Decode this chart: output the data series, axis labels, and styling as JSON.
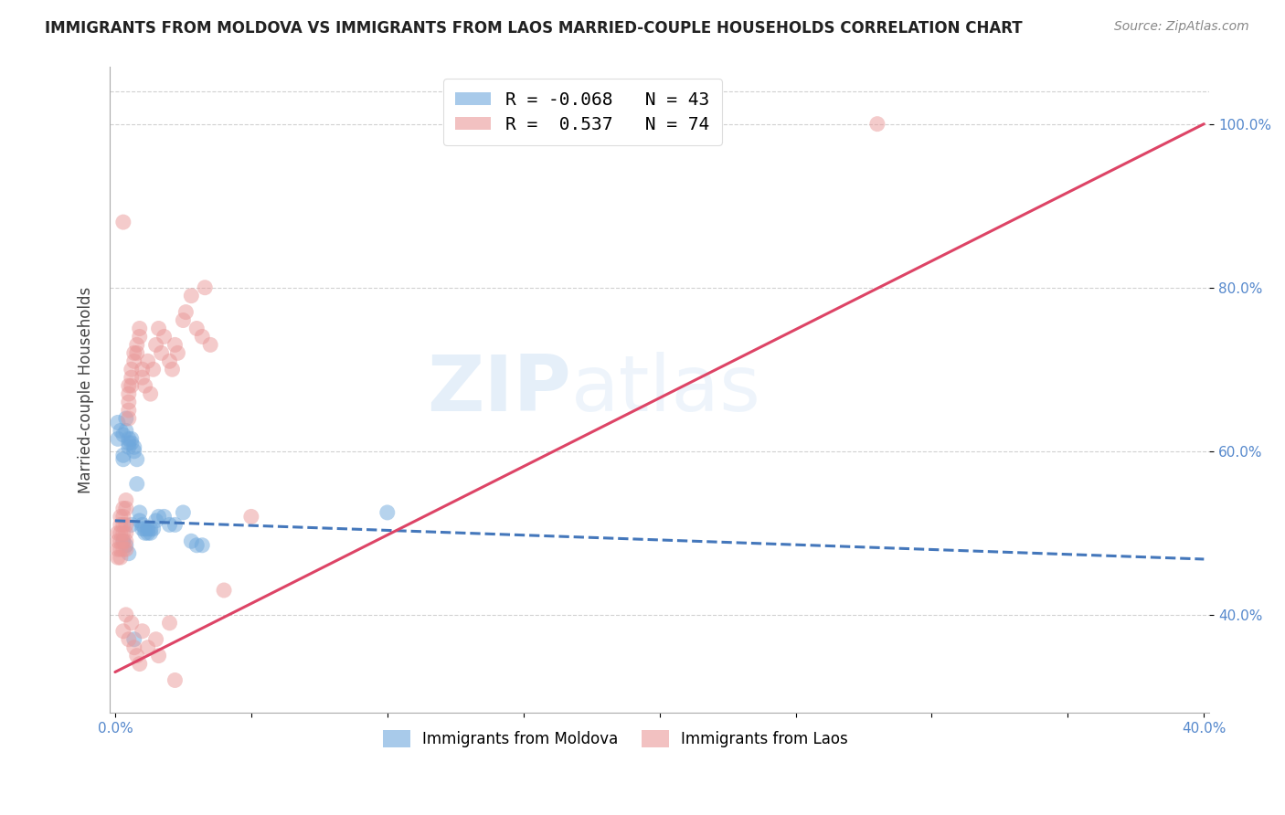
{
  "title": "IMMIGRANTS FROM MOLDOVA VS IMMIGRANTS FROM LAOS MARRIED-COUPLE HOUSEHOLDS CORRELATION CHART",
  "source": "Source: ZipAtlas.com",
  "ylabel_left": "Married-couple Households",
  "x_ticks": [
    0.0,
    0.05,
    0.1,
    0.15,
    0.2,
    0.25,
    0.3,
    0.35,
    0.4
  ],
  "x_tick_labels": [
    "0.0%",
    "",
    "",
    "",
    "",
    "",
    "",
    "",
    "40.0%"
  ],
  "y_ticks_right": [
    0.4,
    0.6,
    0.8,
    1.0
  ],
  "y_tick_labels_right": [
    "40.0%",
    "60.0%",
    "80.0%",
    "100.0%"
  ],
  "xlim": [
    -0.002,
    0.402
  ],
  "ylim": [
    0.28,
    1.07
  ],
  "legend1_entries": [
    {
      "label": "R = -0.068   N = 43",
      "color": "#6fa8dc"
    },
    {
      "label": "R =  0.537   N = 74",
      "color": "#ea9999"
    }
  ],
  "legend2_labels": [
    "Immigrants from Moldova",
    "Immigrants from Laos"
  ],
  "moldova_color": "#6fa8dc",
  "laos_color": "#ea9999",
  "watermark_zip": "ZIP",
  "watermark_atlas": "atlas",
  "moldova_scatter": [
    [
      0.001,
      0.635
    ],
    [
      0.001,
      0.615
    ],
    [
      0.002,
      0.625
    ],
    [
      0.003,
      0.62
    ],
    [
      0.003,
      0.595
    ],
    [
      0.003,
      0.59
    ],
    [
      0.004,
      0.64
    ],
    [
      0.004,
      0.625
    ],
    [
      0.005,
      0.615
    ],
    [
      0.005,
      0.61
    ],
    [
      0.005,
      0.605
    ],
    [
      0.006,
      0.615
    ],
    [
      0.006,
      0.61
    ],
    [
      0.007,
      0.605
    ],
    [
      0.007,
      0.6
    ],
    [
      0.008,
      0.59
    ],
    [
      0.008,
      0.56
    ],
    [
      0.009,
      0.525
    ],
    [
      0.009,
      0.515
    ],
    [
      0.01,
      0.51
    ],
    [
      0.01,
      0.505
    ],
    [
      0.011,
      0.505
    ],
    [
      0.011,
      0.5
    ],
    [
      0.012,
      0.505
    ],
    [
      0.012,
      0.5
    ],
    [
      0.013,
      0.505
    ],
    [
      0.013,
      0.5
    ],
    [
      0.014,
      0.505
    ],
    [
      0.015,
      0.515
    ],
    [
      0.016,
      0.52
    ],
    [
      0.018,
      0.52
    ],
    [
      0.02,
      0.51
    ],
    [
      0.022,
      0.51
    ],
    [
      0.025,
      0.525
    ],
    [
      0.028,
      0.49
    ],
    [
      0.03,
      0.485
    ],
    [
      0.032,
      0.485
    ],
    [
      0.003,
      0.49
    ],
    [
      0.004,
      0.485
    ],
    [
      0.005,
      0.475
    ],
    [
      0.006,
      0.51
    ],
    [
      0.007,
      0.37
    ],
    [
      0.1,
      0.525
    ]
  ],
  "laos_scatter": [
    [
      0.001,
      0.5
    ],
    [
      0.001,
      0.49
    ],
    [
      0.001,
      0.48
    ],
    [
      0.001,
      0.47
    ],
    [
      0.002,
      0.52
    ],
    [
      0.002,
      0.51
    ],
    [
      0.002,
      0.5
    ],
    [
      0.002,
      0.49
    ],
    [
      0.002,
      0.48
    ],
    [
      0.002,
      0.47
    ],
    [
      0.003,
      0.53
    ],
    [
      0.003,
      0.52
    ],
    [
      0.003,
      0.51
    ],
    [
      0.003,
      0.5
    ],
    [
      0.003,
      0.49
    ],
    [
      0.003,
      0.48
    ],
    [
      0.004,
      0.54
    ],
    [
      0.004,
      0.53
    ],
    [
      0.004,
      0.51
    ],
    [
      0.004,
      0.5
    ],
    [
      0.004,
      0.49
    ],
    [
      0.004,
      0.48
    ],
    [
      0.005,
      0.68
    ],
    [
      0.005,
      0.67
    ],
    [
      0.005,
      0.66
    ],
    [
      0.005,
      0.65
    ],
    [
      0.005,
      0.64
    ],
    [
      0.006,
      0.7
    ],
    [
      0.006,
      0.69
    ],
    [
      0.006,
      0.68
    ],
    [
      0.007,
      0.72
    ],
    [
      0.007,
      0.71
    ],
    [
      0.008,
      0.73
    ],
    [
      0.008,
      0.72
    ],
    [
      0.009,
      0.75
    ],
    [
      0.009,
      0.74
    ],
    [
      0.01,
      0.7
    ],
    [
      0.01,
      0.69
    ],
    [
      0.011,
      0.68
    ],
    [
      0.012,
      0.71
    ],
    [
      0.013,
      0.67
    ],
    [
      0.014,
      0.7
    ],
    [
      0.015,
      0.73
    ],
    [
      0.016,
      0.75
    ],
    [
      0.017,
      0.72
    ],
    [
      0.018,
      0.74
    ],
    [
      0.02,
      0.71
    ],
    [
      0.021,
      0.7
    ],
    [
      0.022,
      0.73
    ],
    [
      0.023,
      0.72
    ],
    [
      0.025,
      0.76
    ],
    [
      0.026,
      0.77
    ],
    [
      0.028,
      0.79
    ],
    [
      0.03,
      0.75
    ],
    [
      0.032,
      0.74
    ],
    [
      0.033,
      0.8
    ],
    [
      0.035,
      0.73
    ],
    [
      0.04,
      0.43
    ],
    [
      0.05,
      0.52
    ],
    [
      0.003,
      0.38
    ],
    [
      0.004,
      0.4
    ],
    [
      0.005,
      0.37
    ],
    [
      0.006,
      0.39
    ],
    [
      0.007,
      0.36
    ],
    [
      0.008,
      0.35
    ],
    [
      0.009,
      0.34
    ],
    [
      0.01,
      0.38
    ],
    [
      0.012,
      0.36
    ],
    [
      0.015,
      0.37
    ],
    [
      0.016,
      0.35
    ],
    [
      0.02,
      0.39
    ],
    [
      0.022,
      0.32
    ],
    [
      0.28,
      1.0
    ],
    [
      0.003,
      0.88
    ]
  ],
  "moldova_trend_x": [
    0.0,
    0.4
  ],
  "moldova_trend_y": [
    0.515,
    0.468
  ],
  "laos_trend_x": [
    0.0,
    0.4
  ],
  "laos_trend_y": [
    0.33,
    1.0
  ],
  "grid_color": "#cccccc",
  "tick_color": "#5588cc",
  "title_fontsize": 12,
  "source_fontsize": 10,
  "axis_tick_fontsize": 11
}
